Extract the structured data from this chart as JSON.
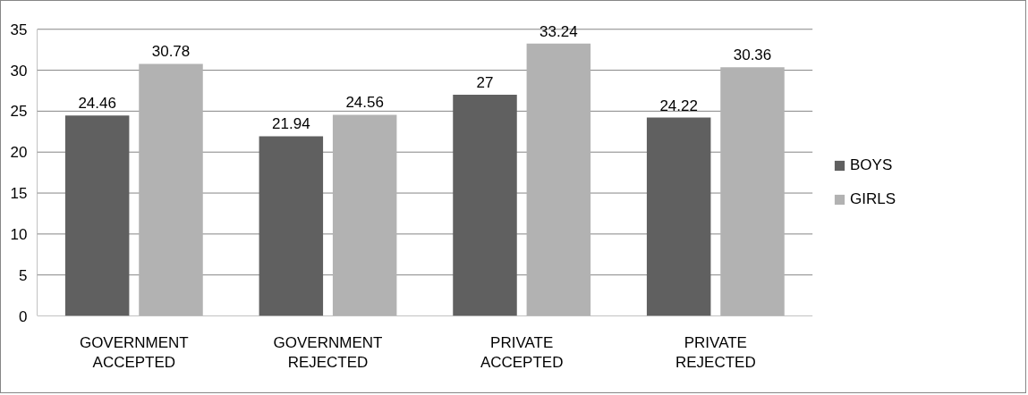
{
  "chart_data": {
    "type": "bar",
    "categories": [
      "GOVERNMENT ACCEPTED",
      "GOVERNMENT REJECTED",
      "PRIVATE ACCEPTED",
      "PRIVATE REJECTED"
    ],
    "series": [
      {
        "name": "BOYS",
        "color": "#606060",
        "values": [
          24.46,
          21.94,
          27,
          24.22
        ]
      },
      {
        "name": "GIRLS",
        "color": "#b2b2b2",
        "values": [
          30.78,
          24.56,
          33.24,
          30.36
        ]
      }
    ],
    "ylim": [
      0,
      35
    ],
    "yticks": [
      0,
      5,
      10,
      15,
      20,
      25,
      30,
      35
    ],
    "grid": "y",
    "legend": "right",
    "data_labels": true
  }
}
